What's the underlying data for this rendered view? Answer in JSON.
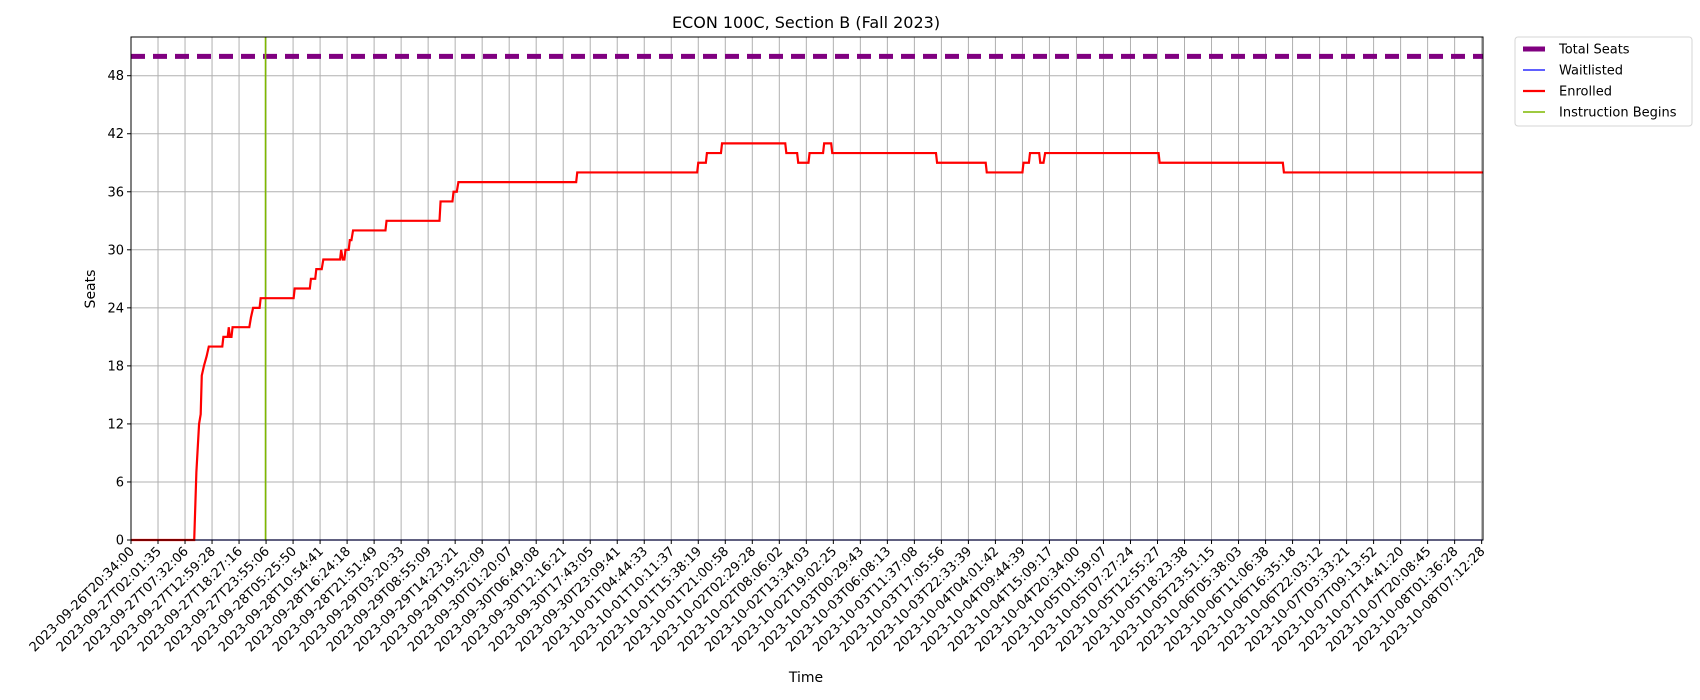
{
  "chart_data": {
    "type": "line",
    "title": "ECON 100C, Section B (Fall 2023)",
    "xlabel": "Time",
    "ylabel": "Seats",
    "ylim": [
      0,
      52
    ],
    "yticks": [
      0,
      6,
      12,
      18,
      24,
      30,
      36,
      42,
      48
    ],
    "grid": true,
    "legend_position": "outside-top-right",
    "x_tick_labels": [
      "2023-09-26T20:34:00",
      "2023-09-27T02:01:35",
      "2023-09-27T07:32:06",
      "2023-09-27T12:59:28",
      "2023-09-27T18:27:16",
      "2023-09-27T23:55:06",
      "2023-09-28T05:25:50",
      "2023-09-28T10:54:41",
      "2023-09-28T16:24:18",
      "2023-09-28T21:51:49",
      "2023-09-29T03:20:33",
      "2023-09-29T08:55:09",
      "2023-09-29T14:23:21",
      "2023-09-29T19:52:09",
      "2023-09-30T01:20:07",
      "2023-09-30T06:49:08",
      "2023-09-30T12:16:21",
      "2023-09-30T17:43:05",
      "2023-09-30T23:09:41",
      "2023-10-01T04:44:33",
      "2023-10-01T10:11:37",
      "2023-10-01T15:38:19",
      "2023-10-01T21:00:58",
      "2023-10-02T02:29:28",
      "2023-10-02T08:06:02",
      "2023-10-02T13:34:03",
      "2023-10-02T19:02:25",
      "2023-10-03T00:29:43",
      "2023-10-03T06:08:13",
      "2023-10-03T11:37:08",
      "2023-10-03T17:05:56",
      "2023-10-03T22:33:39",
      "2023-10-04T04:01:42",
      "2023-10-04T09:44:39",
      "2023-10-04T15:09:17",
      "2023-10-04T20:34:00",
      "2023-10-05T01:59:07",
      "2023-10-05T07:27:24",
      "2023-10-05T12:55:27",
      "2023-10-05T18:23:38",
      "2023-10-05T23:51:15",
      "2023-10-06T05:38:03",
      "2023-10-06T11:06:38",
      "2023-10-06T16:35:18",
      "2023-10-06T22:03:12",
      "2023-10-07T03:33:21",
      "2023-10-07T09:13:52",
      "2023-10-07T14:41:20",
      "2023-10-07T20:08:45",
      "2023-10-08T01:36:28",
      "2023-10-08T07:12:28"
    ],
    "x_range": [
      0,
      50.05
    ],
    "series": [
      {
        "name": "Total Seats",
        "color": "#800080",
        "style": "dashed",
        "points": [
          [
            0,
            50
          ],
          [
            50.05,
            50
          ]
        ]
      },
      {
        "name": "Waitlisted",
        "color": "#0000ff",
        "style": "solid",
        "points": [
          [
            0,
            0
          ],
          [
            50.05,
            0
          ]
        ]
      },
      {
        "name": "Enrolled",
        "color": "#ff0000",
        "style": "solid",
        "points": [
          [
            0,
            0
          ],
          [
            2.34,
            0
          ],
          [
            2.42,
            7
          ],
          [
            2.52,
            12
          ],
          [
            2.58,
            13
          ],
          [
            2.62,
            17
          ],
          [
            2.7,
            18
          ],
          [
            2.8,
            19
          ],
          [
            2.88,
            20
          ],
          [
            3.38,
            20
          ],
          [
            3.42,
            21
          ],
          [
            3.58,
            21
          ],
          [
            3.62,
            22
          ],
          [
            3.66,
            21
          ],
          [
            3.72,
            21
          ],
          [
            3.76,
            22
          ],
          [
            4.38,
            22
          ],
          [
            4.44,
            23
          ],
          [
            4.52,
            24
          ],
          [
            4.76,
            24
          ],
          [
            4.8,
            25
          ],
          [
            6.02,
            25
          ],
          [
            6.06,
            26
          ],
          [
            6.62,
            26
          ],
          [
            6.66,
            27
          ],
          [
            6.82,
            27
          ],
          [
            6.86,
            28
          ],
          [
            7.06,
            28
          ],
          [
            7.12,
            29
          ],
          [
            7.74,
            29
          ],
          [
            7.78,
            30
          ],
          [
            7.84,
            29
          ],
          [
            7.9,
            29
          ],
          [
            7.94,
            30
          ],
          [
            8.06,
            30
          ],
          [
            8.1,
            31
          ],
          [
            8.16,
            31
          ],
          [
            8.22,
            32
          ],
          [
            9.42,
            32
          ],
          [
            9.46,
            33
          ],
          [
            11.42,
            33
          ],
          [
            11.46,
            35
          ],
          [
            11.9,
            35
          ],
          [
            11.94,
            36
          ],
          [
            12.06,
            36
          ],
          [
            12.12,
            37
          ],
          [
            16.48,
            37
          ],
          [
            16.52,
            38
          ],
          [
            20.96,
            38
          ],
          [
            21.0,
            39
          ],
          [
            21.28,
            39
          ],
          [
            21.32,
            40
          ],
          [
            21.84,
            40
          ],
          [
            21.88,
            41
          ],
          [
            24.22,
            41
          ],
          [
            24.26,
            40
          ],
          [
            24.66,
            40
          ],
          [
            24.7,
            39
          ],
          [
            25.08,
            39
          ],
          [
            25.12,
            40
          ],
          [
            25.62,
            40
          ],
          [
            25.66,
            41
          ],
          [
            25.92,
            41
          ],
          [
            25.96,
            40
          ],
          [
            29.8,
            40
          ],
          [
            29.84,
            39
          ],
          [
            31.64,
            39
          ],
          [
            31.68,
            38
          ],
          [
            33.0,
            38
          ],
          [
            33.04,
            39
          ],
          [
            33.24,
            39
          ],
          [
            33.28,
            40
          ],
          [
            33.62,
            40
          ],
          [
            33.66,
            39
          ],
          [
            33.78,
            39
          ],
          [
            33.84,
            40
          ],
          [
            38.04,
            40
          ],
          [
            38.08,
            39
          ],
          [
            42.64,
            39
          ],
          [
            42.68,
            38
          ],
          [
            50.05,
            38
          ]
        ]
      },
      {
        "name": "Instruction Begins",
        "color": "#7fb800",
        "style": "vertical",
        "points": [
          [
            4.98,
            0
          ],
          [
            4.98,
            52
          ]
        ]
      }
    ]
  }
}
